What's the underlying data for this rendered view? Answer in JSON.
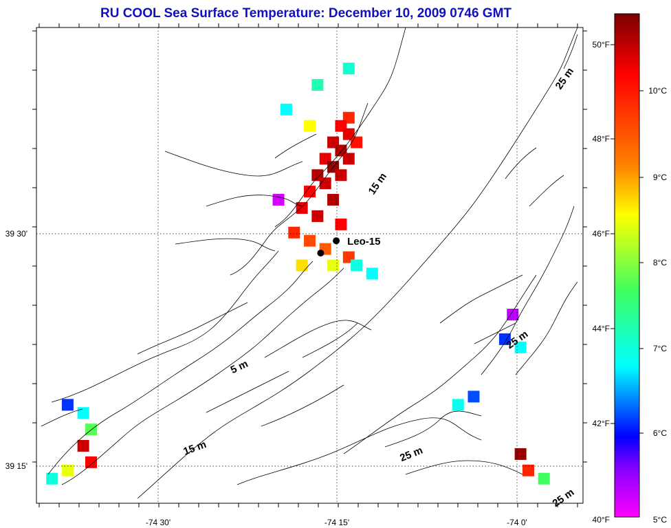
{
  "chart_data": {
    "type": "heatmap",
    "title": "RU COOL  Sea Surface Temperature:  December 10, 2009 0746 GMT",
    "xlabel": "",
    "ylabel": "",
    "x_ticks": [
      "-74 30'",
      "-74 15'",
      "-74 0'"
    ],
    "y_ticks": [
      "39 30'",
      "39 15'"
    ],
    "xlim": [
      -74.62,
      -73.92
    ],
    "ylim": [
      39.14,
      39.72
    ],
    "grid": true,
    "colorbar": {
      "range_celsius": [
        5,
        10.5
      ],
      "celsius_ticks": [
        "10°C",
        "9°C",
        "8°C",
        "7°C",
        "6°C",
        "5°C"
      ],
      "fahrenheit_ticks": [
        "50°F",
        "48°F",
        "46°F",
        "44°F",
        "42°F",
        "40°F"
      ],
      "colors": [
        "#800000",
        "#ff0000",
        "#ff8000",
        "#ffff00",
        "#40ff60",
        "#00ffff",
        "#0000ff",
        "#ff00ff"
      ]
    },
    "contour_labels": [
      "25 m",
      "15 m",
      "5 m",
      "15 m",
      "25 m",
      "25 m",
      "25 m"
    ],
    "stations": [
      {
        "name": "Leo-15",
        "lon": -74.236,
        "lat": 39.46
      },
      {
        "name": "",
        "lon": -74.256,
        "lat": 39.445
      }
    ],
    "sst_cells_celsius": [
      {
        "lon": -74.22,
        "lat": 39.61,
        "t": 9.8
      },
      {
        "lon": -74.23,
        "lat": 39.6,
        "t": 10.0
      },
      {
        "lon": -74.22,
        "lat": 39.59,
        "t": 10.1
      },
      {
        "lon": -74.21,
        "lat": 39.58,
        "t": 9.9
      },
      {
        "lon": -74.24,
        "lat": 39.58,
        "t": 10.2
      },
      {
        "lon": -74.23,
        "lat": 39.57,
        "t": 10.3
      },
      {
        "lon": -74.22,
        "lat": 39.56,
        "t": 10.2
      },
      {
        "lon": -74.25,
        "lat": 39.56,
        "t": 10.1
      },
      {
        "lon": -74.24,
        "lat": 39.55,
        "t": 10.4
      },
      {
        "lon": -74.23,
        "lat": 39.54,
        "t": 10.2
      },
      {
        "lon": -74.26,
        "lat": 39.54,
        "t": 10.3
      },
      {
        "lon": -74.25,
        "lat": 39.53,
        "t": 10.2
      },
      {
        "lon": -74.27,
        "lat": 39.52,
        "t": 10.0
      },
      {
        "lon": -74.24,
        "lat": 39.51,
        "t": 10.3
      },
      {
        "lon": -74.28,
        "lat": 39.5,
        "t": 10.1
      },
      {
        "lon": -74.26,
        "lat": 39.49,
        "t": 10.2
      },
      {
        "lon": -74.23,
        "lat": 39.48,
        "t": 10.0
      },
      {
        "lon": -74.29,
        "lat": 39.47,
        "t": 9.8
      },
      {
        "lon": -74.27,
        "lat": 39.46,
        "t": 9.6
      },
      {
        "lon": -74.25,
        "lat": 39.45,
        "t": 9.5
      },
      {
        "lon": -74.22,
        "lat": 39.44,
        "t": 9.7
      },
      {
        "lon": -74.28,
        "lat": 39.43,
        "t": 9.0
      },
      {
        "lon": -74.24,
        "lat": 39.43,
        "t": 8.8
      },
      {
        "lon": -74.21,
        "lat": 39.43,
        "t": 7.2
      },
      {
        "lon": -74.19,
        "lat": 39.42,
        "t": 7.0
      },
      {
        "lon": -74.26,
        "lat": 39.65,
        "t": 7.5
      },
      {
        "lon": -74.22,
        "lat": 39.67,
        "t": 7.3
      },
      {
        "lon": -74.3,
        "lat": 39.62,
        "t": 7.0
      },
      {
        "lon": -74.27,
        "lat": 39.6,
        "t": 8.9
      },
      {
        "lon": -74.31,
        "lat": 39.51,
        "t": 5.2
      },
      {
        "lon": -74.01,
        "lat": 39.37,
        "t": 5.3
      },
      {
        "lon": -74.02,
        "lat": 39.34,
        "t": 6.2
      },
      {
        "lon": -74.0,
        "lat": 39.33,
        "t": 7.0
      },
      {
        "lon": -74.06,
        "lat": 39.27,
        "t": 6.3
      },
      {
        "lon": -74.08,
        "lat": 39.26,
        "t": 7.1
      },
      {
        "lon": -74.0,
        "lat": 39.2,
        "t": 10.4
      },
      {
        "lon": -73.99,
        "lat": 39.18,
        "t": 9.8
      },
      {
        "lon": -73.97,
        "lat": 39.17,
        "t": 8.0
      },
      {
        "lon": -74.58,
        "lat": 39.26,
        "t": 6.2
      },
      {
        "lon": -74.56,
        "lat": 39.25,
        "t": 7.0
      },
      {
        "lon": -74.55,
        "lat": 39.23,
        "t": 8.1
      },
      {
        "lon": -74.56,
        "lat": 39.21,
        "t": 10.2
      },
      {
        "lon": -74.55,
        "lat": 39.19,
        "t": 10.0
      },
      {
        "lon": -74.58,
        "lat": 39.18,
        "t": 8.8
      },
      {
        "lon": -74.6,
        "lat": 39.17,
        "t": 7.2
      }
    ]
  }
}
